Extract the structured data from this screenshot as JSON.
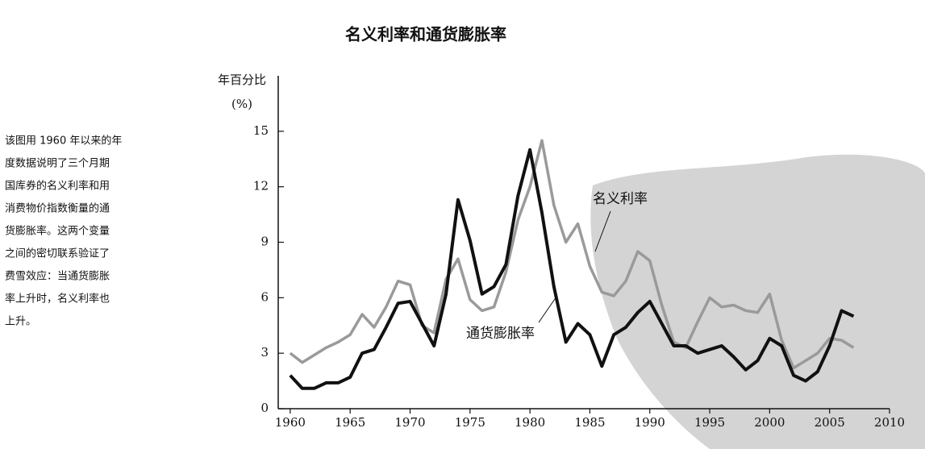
{
  "chart_data": {
    "type": "line",
    "title": "名义利率和通货膨胀率",
    "ylabel": [
      "年百分比",
      "(%)"
    ],
    "description": [
      "该图用 1960 年以来的年",
      "度数据说明了三个月期",
      "国库券的名义利率和用",
      "消费物价指数衡量的通",
      "货膨胀率。这两个变量",
      "之间的密切联系验证了",
      "费雪效应：当通货膨胀",
      "率上升时，名义利率也",
      "上升。"
    ],
    "x": [
      1960,
      1961,
      1962,
      1963,
      1964,
      1965,
      1966,
      1967,
      1968,
      1969,
      1970,
      1971,
      1972,
      1973,
      1974,
      1975,
      1976,
      1977,
      1978,
      1979,
      1980,
      1981,
      1982,
      1983,
      1984,
      1985,
      1986,
      1987,
      1988,
      1989,
      1990,
      1991,
      1992,
      1993,
      1994,
      1995,
      1996,
      1997,
      1998,
      1999,
      2000,
      2001,
      2002,
      2003,
      2004,
      2005,
      2006,
      2007
    ],
    "series": [
      {
        "name": "名义利率",
        "color": "#9a9a9a",
        "values": [
          3.0,
          2.5,
          2.9,
          3.3,
          3.6,
          4.0,
          5.1,
          4.4,
          5.5,
          6.9,
          6.7,
          4.5,
          4.1,
          7.0,
          8.1,
          5.9,
          5.3,
          5.5,
          7.4,
          10.2,
          12.0,
          14.5,
          11.0,
          9.0,
          10.0,
          7.7,
          6.3,
          6.1,
          6.9,
          8.5,
          8.0,
          5.6,
          3.6,
          3.3,
          4.7,
          6.0,
          5.5,
          5.6,
          5.3,
          5.2,
          6.2,
          3.7,
          2.2,
          2.6,
          3.0,
          3.8,
          3.7,
          3.3
        ]
      },
      {
        "name": "通货膨胀率",
        "color": "#111111",
        "values": [
          1.8,
          1.1,
          1.1,
          1.4,
          1.4,
          1.7,
          3.0,
          3.2,
          4.4,
          5.7,
          5.8,
          4.6,
          3.4,
          6.2,
          11.3,
          9.1,
          6.2,
          6.6,
          7.8,
          11.5,
          14.0,
          10.6,
          6.6,
          3.6,
          4.6,
          4.0,
          2.3,
          4.0,
          4.4,
          5.2,
          5.8,
          4.6,
          3.4,
          3.4,
          3.0,
          3.2,
          3.4,
          2.8,
          2.1,
          2.6,
          3.8,
          3.4,
          1.8,
          1.5,
          2.0,
          3.4,
          5.3,
          5.0
        ]
      }
    ],
    "xlim": [
      1959,
      2010
    ],
    "xticks": [
      1960,
      1965,
      1970,
      1975,
      1980,
      1985,
      1990,
      1995,
      2000,
      2005,
      2010
    ],
    "ylim": [
      0,
      18
    ],
    "yticks": [
      0,
      3,
      6,
      9,
      12,
      15
    ]
  }
}
